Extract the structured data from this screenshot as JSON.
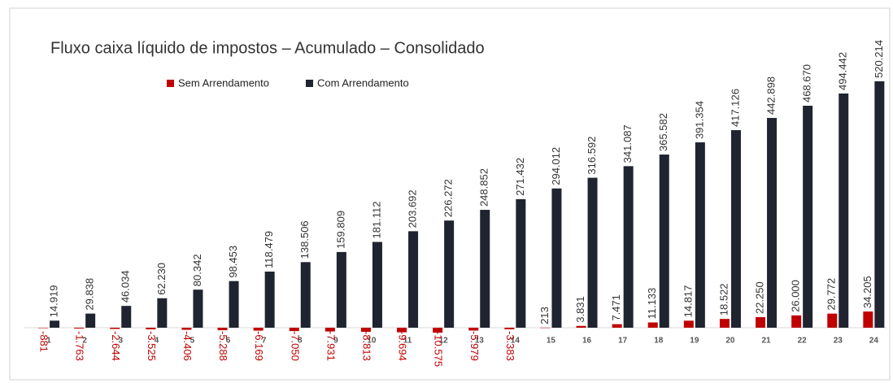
{
  "chart_data": {
    "type": "bar",
    "title": "Fluxo caixa líquido de impostos – Acumulado – Consolidado",
    "categories": [
      "1",
      "2",
      "3",
      "4",
      "5",
      "6",
      "7",
      "8",
      "9",
      "10",
      "11",
      "12",
      "13",
      "14",
      "15",
      "16",
      "17",
      "18",
      "19",
      "20",
      "21",
      "22",
      "23",
      "24"
    ],
    "series": [
      {
        "name": "Sem Arrendamento",
        "color": "#c00000",
        "values": [
          -881,
          -1763,
          -2644,
          -3525,
          -4406,
          -5288,
          -6169,
          -7050,
          -7931,
          -8813,
          -9694,
          -10575,
          -5979,
          -3383,
          213,
          3831,
          7471,
          11133,
          14817,
          18522,
          22250,
          26000,
          29772,
          34205
        ],
        "value_labels": [
          "-881",
          "-1.763",
          "-2.644",
          "-3.525",
          "-4.406",
          "-5.288",
          "-6.169",
          "-7.050",
          "-7.931",
          "-8.813",
          "-9.694",
          "-10.575",
          "-5.979",
          "-3.383",
          "213",
          "3.831",
          "7.471",
          "11.133",
          "14.817",
          "18.522",
          "22.250",
          "26.000",
          "29.772",
          "34.205"
        ]
      },
      {
        "name": "Com Arrendamento",
        "color": "#1f2430",
        "values": [
          14919,
          29838,
          46034,
          62230,
          80342,
          98453,
          118479,
          138506,
          159809,
          181112,
          203692,
          226272,
          248852,
          271432,
          294012,
          316592,
          341087,
          365582,
          391354,
          417126,
          442898,
          468670,
          494442,
          520214
        ],
        "value_labels": [
          "14.919",
          "29.838",
          "46.034",
          "62.230",
          "80.342",
          "98.453",
          "118.479",
          "138.506",
          "159.809",
          "181.112",
          "203.692",
          "226.272",
          "248.852",
          "271.432",
          "294.012",
          "316.592",
          "341.087",
          "365.582",
          "391.354",
          "417.126",
          "442.898",
          "468.670",
          "494.442",
          "520.214"
        ]
      }
    ]
  }
}
